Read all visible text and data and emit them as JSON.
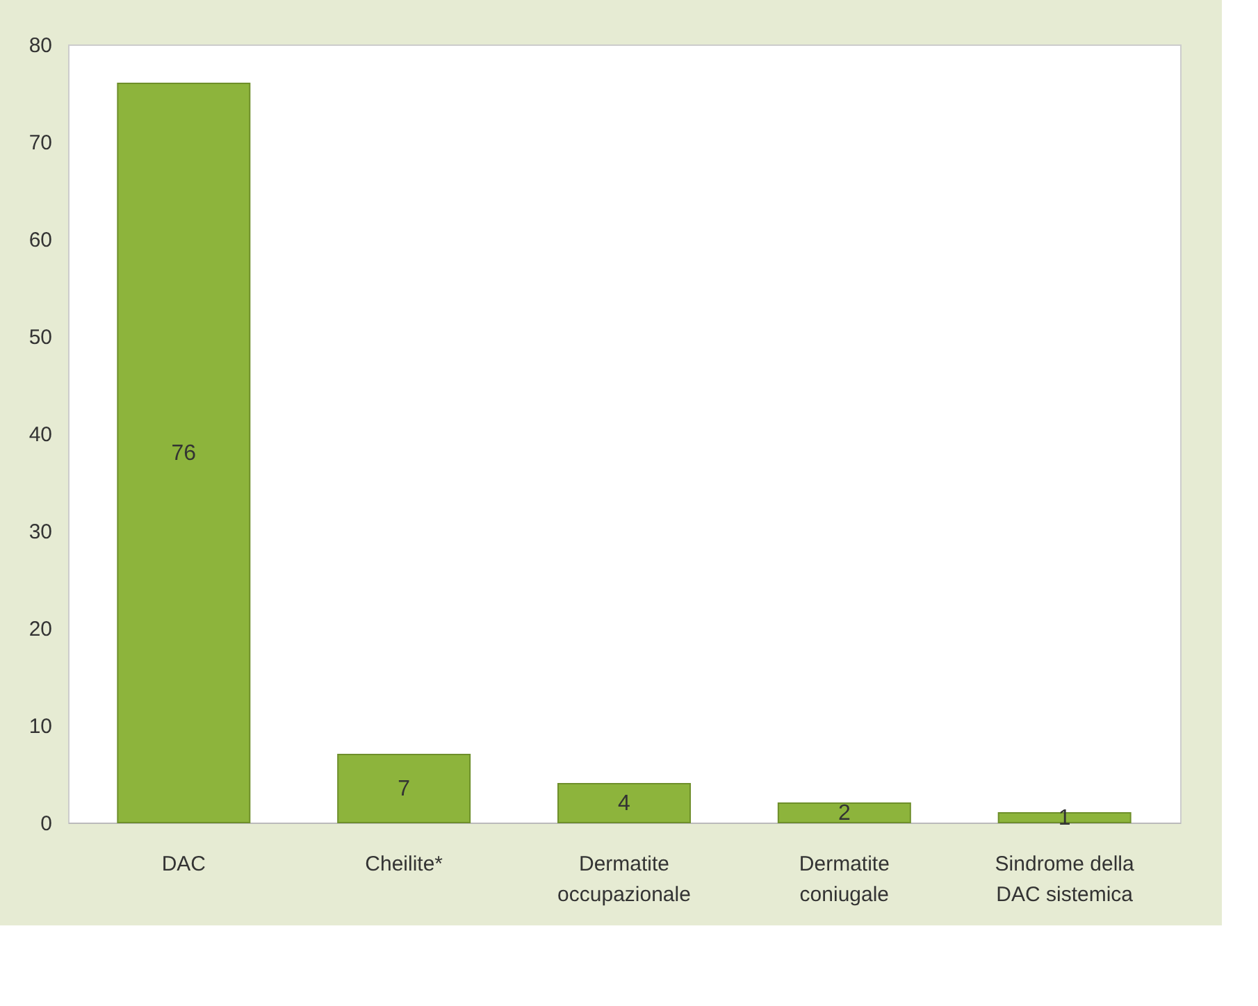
{
  "chart_data": {
    "type": "bar",
    "categories": [
      "DAC",
      "Cheilite*",
      "Dermatite\noccupazionale",
      "Dermatite\nconiugale",
      "Sindrome della\nDAC sistemica"
    ],
    "values": [
      76,
      7,
      4,
      2,
      1
    ],
    "color": "#8db43c",
    "ylim": [
      0,
      80
    ],
    "yticks": [
      0,
      10,
      20,
      30,
      40,
      50,
      60,
      70,
      80
    ],
    "grid": false,
    "data_labels": true
  }
}
